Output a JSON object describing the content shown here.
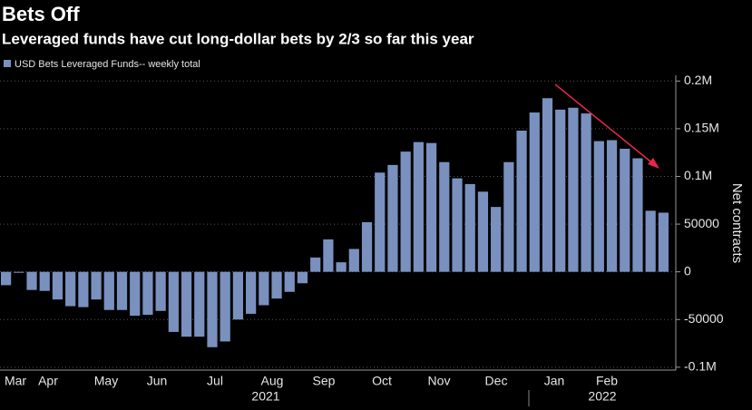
{
  "chart_data": {
    "type": "bar",
    "title": "Bets Off",
    "subtitle": "Leveraged funds have cut long-dollar bets by 2/3 so far this year",
    "series": [
      {
        "name": "USD Bets Leveraged Funds-- weekly total",
        "color": "#7a91bf",
        "values": [
          -14000,
          -1000,
          -19000,
          -20000,
          -29000,
          -36000,
          -37000,
          -29000,
          -40000,
          -40000,
          -46000,
          -45000,
          -41000,
          -63000,
          -68000,
          -68000,
          -79000,
          -73000,
          -50000,
          -44000,
          -35000,
          -28000,
          -21000,
          -12000,
          15000,
          34000,
          10000,
          24000,
          52000,
          104000,
          112000,
          126000,
          136000,
          135000,
          115000,
          98000,
          92000,
          84000,
          68000,
          115000,
          148000,
          167000,
          182000,
          170000,
          172000,
          166000,
          137000,
          138000,
          129000,
          119000,
          64000,
          62000
        ]
      }
    ],
    "month_labels": [
      "Mar",
      "Apr",
      "May",
      "Jun",
      "Jul",
      "Aug",
      "Sep",
      "Oct",
      "Nov",
      "Dec",
      "Jan",
      "Feb"
    ],
    "year_labels": [
      "2021",
      "2022"
    ],
    "ylabel": "Net contracts",
    "ylim": [
      -103000,
      206000
    ],
    "yticks": [
      {
        "value": -100000,
        "label": "-0.1M"
      },
      -50000,
      0,
      50000,
      {
        "value": 100000,
        "label": "0.1M"
      },
      {
        "value": 150000,
        "label": "0.15M"
      },
      {
        "value": 200000,
        "label": "0.2M"
      }
    ],
    "grid": true
  }
}
